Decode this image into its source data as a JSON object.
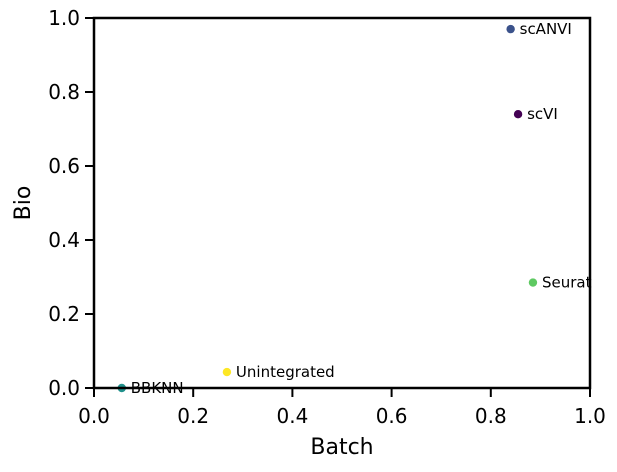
{
  "chart_data": {
    "type": "scatter",
    "title": "",
    "xlabel": "Batch",
    "ylabel": "Bio",
    "xlim": [
      0.0,
      1.0
    ],
    "ylim": [
      0.0,
      1.0
    ],
    "x_ticks": [
      "0.0",
      "0.2",
      "0.4",
      "0.6",
      "0.8",
      "1.0"
    ],
    "y_ticks": [
      "0.0",
      "0.2",
      "0.4",
      "0.6",
      "0.8",
      "1.0"
    ],
    "grid": false,
    "legend": "none",
    "points": [
      {
        "label": "scANVI",
        "x": 0.84,
        "y": 0.97,
        "color": "#3b528b"
      },
      {
        "label": "scVI",
        "x": 0.855,
        "y": 0.74,
        "color": "#440154"
      },
      {
        "label": "Seurat",
        "x": 0.885,
        "y": 0.285,
        "color": "#5ec962"
      },
      {
        "label": "Unintegrated",
        "x": 0.268,
        "y": 0.043,
        "color": "#fde725"
      },
      {
        "label": "BBKNN",
        "x": 0.056,
        "y": 0.0,
        "color": "#21918c"
      }
    ]
  }
}
